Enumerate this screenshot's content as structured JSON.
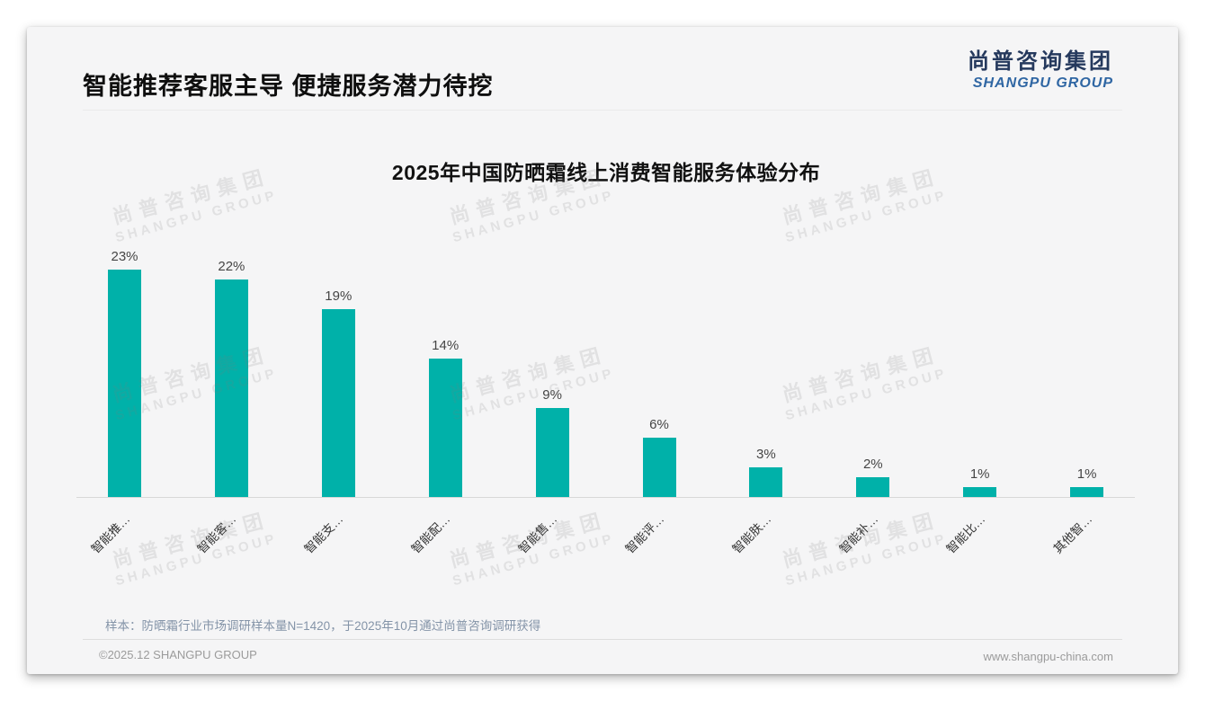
{
  "header": {
    "title": "智能推荐客服主导 便捷服务潜力待挖",
    "logo": {
      "cn": "尚普咨询集团",
      "en": "SHANGPU GROUP"
    }
  },
  "watermark": {
    "line1": "尚普咨询集团",
    "line2": "SHANGPU GROUP"
  },
  "chart_data": {
    "type": "bar",
    "title": "2025年中国防晒霜线上消费智能服务体验分布",
    "categories": [
      "智能推…",
      "智能客…",
      "智能支…",
      "智能配…",
      "智能售…",
      "智能评…",
      "智能肤…",
      "智能补…",
      "智能比…",
      "其他智…"
    ],
    "values": [
      23,
      22,
      19,
      14,
      9,
      6,
      3,
      2,
      1,
      1
    ],
    "value_labels": [
      "23%",
      "22%",
      "19%",
      "14%",
      "9%",
      "6%",
      "3%",
      "2%",
      "1%",
      "1%"
    ],
    "unit": "%",
    "ylim": [
      0,
      25
    ],
    "grid": false,
    "legend": false,
    "bar_color": "#00B1A9"
  },
  "footnote": "样本：防晒霜行业市场调研样本量N=1420，于2025年10月通过尚普咨询调研获得",
  "footer": {
    "left": "©2025.12 SHANGPU GROUP",
    "right": "www.shangpu-china.com"
  },
  "colors": {
    "accent_teal": "#00B1A9",
    "logo_navy": "#25395d",
    "logo_blue": "#2f66a3",
    "card_bg": "#f5f5f6",
    "footnote_gray_blue": "#8494a8"
  }
}
